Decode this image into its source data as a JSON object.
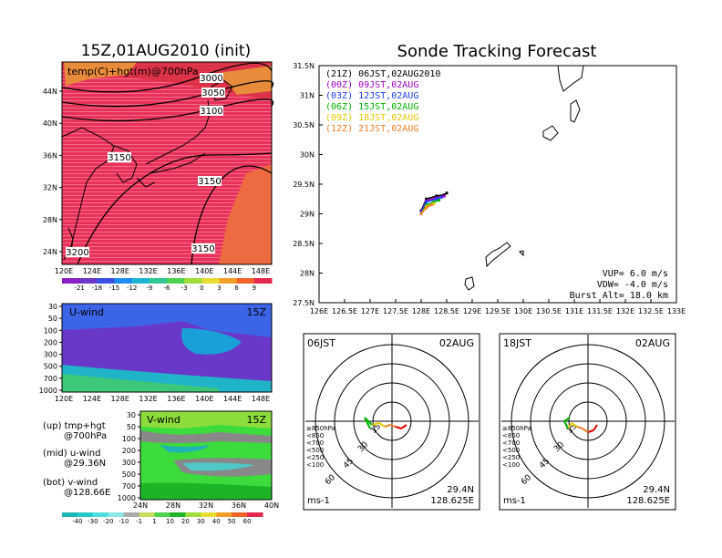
{
  "main_map": {
    "title": "15Z,01AUG2010 (init)",
    "label": "temp(C)+hgt(m)@700hPa",
    "lat_ticks": [
      "44N",
      "40N",
      "36N",
      "32N",
      "28N",
      "24N"
    ],
    "lon_ticks": [
      "120E",
      "124E",
      "128E",
      "132E",
      "136E",
      "140E",
      "144E",
      "148E"
    ],
    "contours": [
      "3000",
      "3050",
      "3100",
      "3150",
      "3150",
      "3150",
      "3200"
    ],
    "colorbar": [
      "-21",
      "-18",
      "-15",
      "-12",
      "-9",
      "-6",
      "-3",
      "0",
      "3",
      "6",
      "9"
    ]
  },
  "u_wind": {
    "title": "U-wind",
    "time": "15Z",
    "p_ticks": [
      "30",
      "50",
      "100",
      "200",
      "300",
      "500",
      "700",
      "1000"
    ],
    "lon_ticks": [
      "120E",
      "124E",
      "128E",
      "132E",
      "136E",
      "140E",
      "144E",
      "148E"
    ]
  },
  "v_wind": {
    "title": "V-wind",
    "time": "15Z",
    "p_ticks": [
      "30",
      "50",
      "100",
      "200",
      "300",
      "500",
      "700",
      "1000"
    ],
    "lat_ticks": [
      "24N",
      "28N",
      "32N",
      "36N",
      "40N"
    ],
    "colorbar": [
      "-40",
      "-30",
      "-20",
      "-10",
      "-1",
      "1",
      "10",
      "20",
      "30",
      "40",
      "50",
      "60"
    ]
  },
  "legend_notes": [
    {
      "line1": "(up) tmp+hgt",
      "line2": "@700hPa"
    },
    {
      "line1": "(mid) u-wind",
      "line2": "@29.36N"
    },
    {
      "line1": "(bot) v-wind",
      "line2": "@128.66E"
    }
  ],
  "track": {
    "title": "Sonde Tracking Forecast",
    "lat_ticks": [
      "31.5N",
      "31N",
      "30.5N",
      "30N",
      "29.5N",
      "29N",
      "28.5N",
      "28N",
      "27.5N"
    ],
    "lon_ticks": [
      "126E",
      "126.5E",
      "127E",
      "127.5E",
      "128E",
      "128.5E",
      "129E",
      "129.5E",
      "130E",
      "130.5E",
      "131E",
      "131.5E",
      "132E",
      "132.5E",
      "133E"
    ],
    "legend": [
      {
        "text": "(21Z) 06JST,02AUG2010",
        "color": "#000000"
      },
      {
        "text": "(00Z) 09JST,02AUG",
        "color": "#a000c8"
      },
      {
        "text": "(03Z) 12JST,02AUG",
        "color": "#1e3cff"
      },
      {
        "text": "(06Z) 15JST,02AUG",
        "color": "#00b400"
      },
      {
        "text": "(09Z) 18JST,02AUG",
        "color": "#e6c800"
      },
      {
        "text": "(12Z) 21JST,02AUG",
        "color": "#f08228"
      }
    ],
    "params": [
      "VUP= 6.0 m/s",
      "VDW= -4.0 m/s",
      "Burst Alt= 18.0 km"
    ]
  },
  "hodo_left": {
    "time": "06JST",
    "date": "02AUG",
    "lat": "29.4N",
    "lon": "128.625E",
    "unit": "ms-1"
  },
  "hodo_right": {
    "time": "18JST",
    "date": "02AUG",
    "lat": "29.4N",
    "lon": "128.625E",
    "unit": "ms-1"
  },
  "hodo_rings": [
    "15",
    "30",
    "45",
    "60"
  ],
  "hodo_levels": [
    {
      "text": "≥850hPa",
      "color": "#e00000"
    },
    {
      "text": "<850",
      "color": "#f08228"
    },
    {
      "text": "<700",
      "color": "#e6c800"
    },
    {
      "text": "<500",
      "color": "#00b400"
    },
    {
      "text": "<250",
      "color": "#00a0c8"
    },
    {
      "text": "<100",
      "color": "#1e3cff"
    }
  ],
  "chart_data": {
    "type": "line",
    "title": "Sonde Tracking Forecast",
    "xlim": [
      126,
      133
    ],
    "ylim": [
      27.5,
      31.5
    ],
    "series": [
      {
        "name": "(21Z) 06JST,02AUG2010",
        "x": [
          128.0,
          128.1,
          128.3,
          128.45,
          128.5
        ],
        "y": [
          29.05,
          29.25,
          29.3,
          29.32,
          29.35
        ]
      },
      {
        "name": "(00Z) 09JST,02AUG",
        "x": [
          128.0,
          128.1,
          128.3,
          128.45
        ],
        "y": [
          29.03,
          29.22,
          29.27,
          29.3
        ]
      },
      {
        "name": "(03Z) 12JST,02AUG",
        "x": [
          128.0,
          128.1,
          128.3,
          128.4
        ],
        "y": [
          29.02,
          29.2,
          29.25,
          29.28
        ]
      },
      {
        "name": "(06Z) 15JST,02AUG",
        "x": [
          128.0,
          128.1,
          128.25,
          128.35
        ],
        "y": [
          29.0,
          29.15,
          29.2,
          29.23
        ]
      },
      {
        "name": "(09Z) 18JST,02AUG",
        "x": [
          128.0,
          128.1,
          128.25
        ],
        "y": [
          29.0,
          29.12,
          29.17
        ]
      },
      {
        "name": "(12Z) 21JST,02AUG",
        "x": [
          128.0,
          128.1,
          128.2
        ],
        "y": [
          29.0,
          29.1,
          29.15
        ]
      }
    ]
  }
}
